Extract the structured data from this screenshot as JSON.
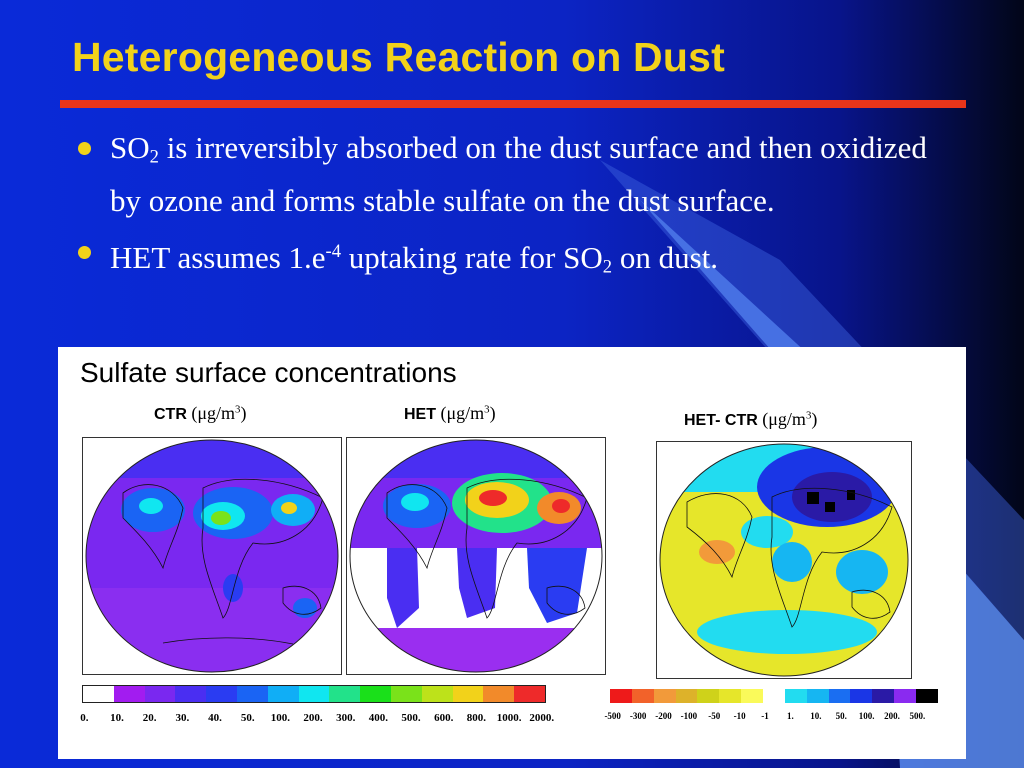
{
  "slide": {
    "title": "Heterogeneous Reaction on Dust",
    "colors": {
      "title": "#f2d21a",
      "rule": "#e8351a",
      "bullet_dot": "#f2d21a",
      "text": "#ffffff"
    },
    "bullets": [
      {
        "parts": [
          {
            "text": "SO"
          },
          {
            "sub": "2"
          },
          {
            "text": " is irreversibly absorbed on the dust surface and then oxidized by ozone and forms stable sulfate on the dust surface."
          }
        ]
      },
      {
        "parts": [
          {
            "text": "HET assumes 1.e"
          },
          {
            "sup": "-4"
          },
          {
            "text": " uptaking rate for SO"
          },
          {
            "sub": "2"
          },
          {
            "text": " on dust."
          }
        ]
      }
    ]
  },
  "figure": {
    "title": "Sulfate surface concentrations",
    "maps": [
      {
        "id": "ctr",
        "name": "CTR",
        "unit_open": "(μg/m",
        "unit_sup": "3",
        "unit_close": ")"
      },
      {
        "id": "het",
        "name": "HET",
        "unit_open": "(μg/m",
        "unit_sup": "3",
        "unit_close": ")"
      },
      {
        "id": "diff",
        "name": "HET- CTR",
        "unit_open": "(μg/m",
        "unit_sup": "3",
        "unit_close": ")"
      }
    ],
    "scale_left": {
      "colors": [
        "#ffffff",
        "#a21cf0",
        "#7a28f0",
        "#4a2ef2",
        "#2a3cf2",
        "#1a64f4",
        "#10aef6",
        "#10e6f0",
        "#22e28a",
        "#1ae01a",
        "#7ae21a",
        "#bde21a",
        "#f2d21a",
        "#f28a2a",
        "#ee2a2a"
      ],
      "labels": [
        "0.",
        "10.",
        "20.",
        "30.",
        "40.",
        "50.",
        "100.",
        "200.",
        "300.",
        "400.",
        "500.",
        "600.",
        "800.",
        "1000.",
        "2000."
      ]
    },
    "scale_right": {
      "colors": [
        "#ee1a1a",
        "#f2622a",
        "#f29a3a",
        "#ddb22a",
        "#cfd21a",
        "#e6e62a",
        "#fafa5a",
        "#ffffff",
        "#22dcf0",
        "#16b6f2",
        "#1a6ef2",
        "#1a36e6",
        "#2a1aa6",
        "#8a2af0",
        "#000000"
      ],
      "labels": [
        "-500",
        "-300",
        "-200",
        "-100",
        "-50",
        "-10",
        "-1",
        "1.",
        "10.",
        "50.",
        "100.",
        "200.",
        "500."
      ]
    }
  }
}
